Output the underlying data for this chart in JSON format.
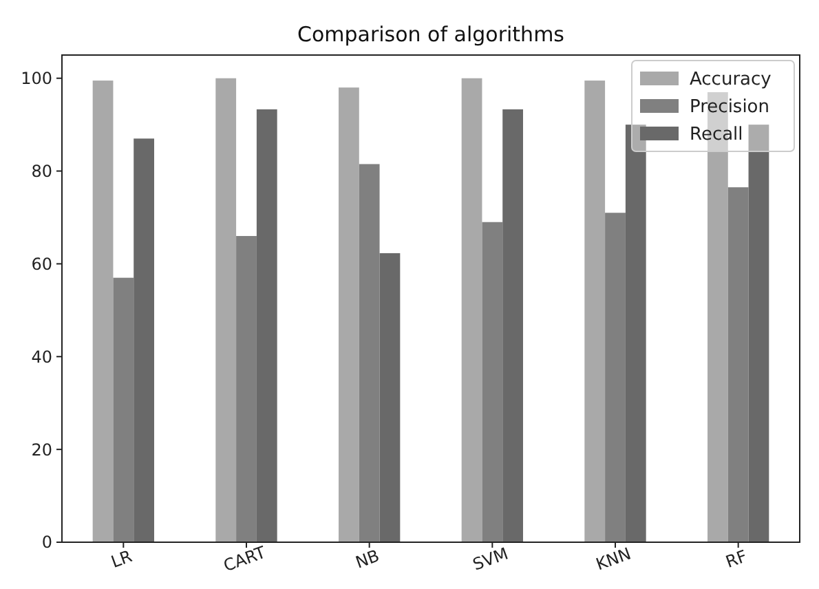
{
  "chart_data": {
    "type": "bar",
    "title": "Comparison of algorithms",
    "categories": [
      "LR",
      "CART",
      "NB",
      "SVM",
      "KNN",
      "RF"
    ],
    "series": [
      {
        "name": "Accuracy",
        "color": "#a9a9a9",
        "values": [
          99.5,
          100,
          98,
          100,
          99.5,
          97
        ]
      },
      {
        "name": "Precision",
        "color": "#808080",
        "values": [
          57,
          66,
          81.5,
          69,
          71,
          76.5
        ]
      },
      {
        "name": "Recall",
        "color": "#696969",
        "values": [
          87,
          93.3,
          62.3,
          93.3,
          90,
          90
        ]
      }
    ],
    "ylim": [
      0,
      105
    ],
    "yticks": [
      0,
      20,
      40,
      60,
      80,
      100
    ],
    "legend": "top right"
  }
}
